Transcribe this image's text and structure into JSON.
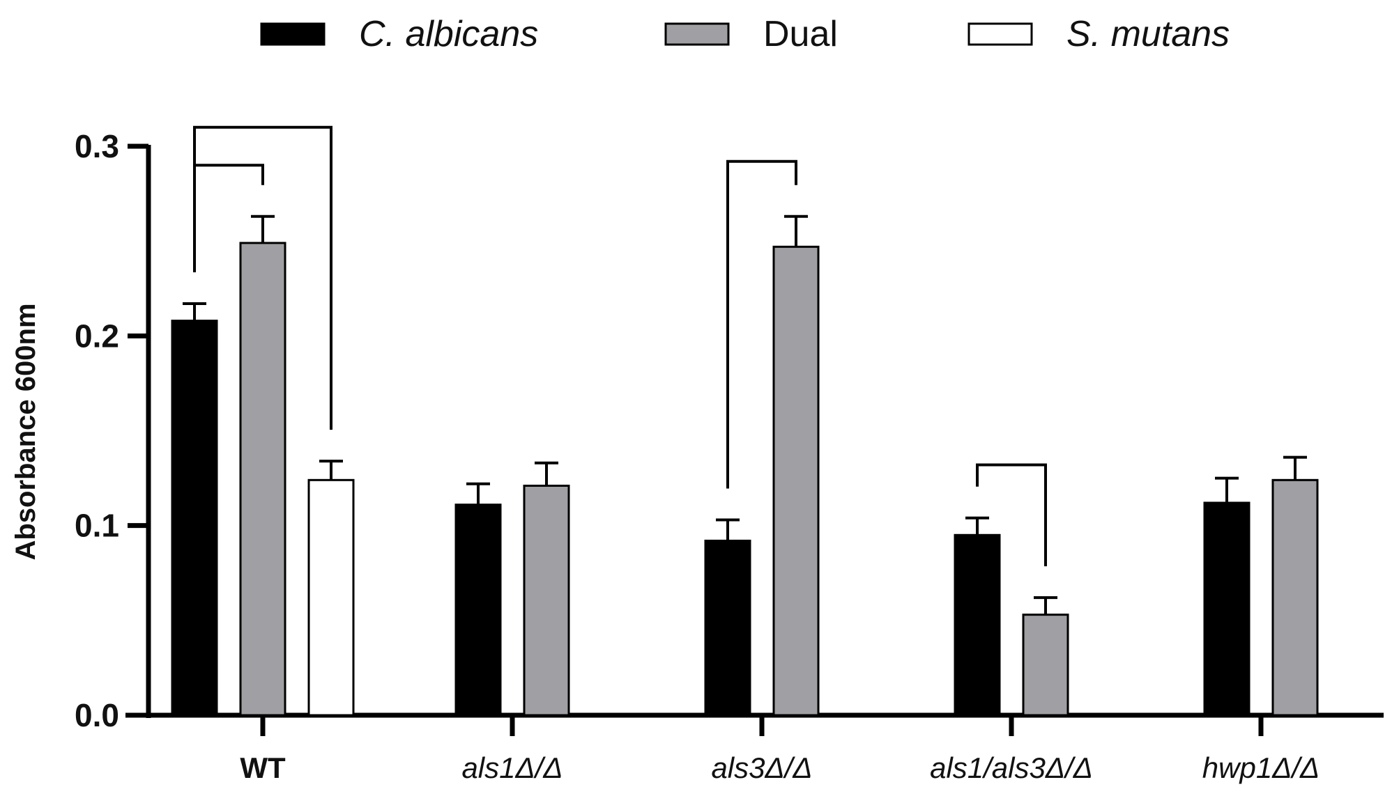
{
  "chart_data": {
    "type": "bar",
    "title": "",
    "xlabel": "",
    "ylabel": "Absorbance 600nm",
    "ylim": [
      0,
      0.3
    ],
    "yticks": [
      "0.0",
      "0.1",
      "0.2",
      "0.3"
    ],
    "yticks_values": [
      0,
      0.1,
      0.2,
      0.3
    ],
    "categories": [
      "WT",
      "als1Δ/Δ",
      "als3Δ/Δ",
      "als1/als3Δ/Δ",
      "hwp1Δ/Δ"
    ],
    "category_styles": [
      "bold",
      "italic",
      "italic",
      "italic",
      "italic"
    ],
    "legend": {
      "placement": "top",
      "entries": [
        {
          "name": "C. albicans",
          "italic": true,
          "color": "#000000"
        },
        {
          "name": "Dual",
          "italic": false,
          "color": "#a0a0a4"
        },
        {
          "name": "S. mutans",
          "italic": true,
          "color": "#ffffff"
        }
      ]
    },
    "series": [
      {
        "name": "C. albicans",
        "color": "#000000",
        "values": [
          0.208,
          0.111,
          0.092,
          0.095,
          0.112
        ],
        "errors": [
          0.009,
          0.011,
          0.011,
          0.009,
          0.013
        ]
      },
      {
        "name": "Dual",
        "color": "#a0a0a4",
        "values": [
          0.249,
          0.121,
          0.247,
          0.053,
          0.124
        ],
        "errors": [
          0.014,
          0.012,
          0.016,
          0.009,
          0.012
        ]
      },
      {
        "name": "S. mutans",
        "color": "#ffffff",
        "values": [
          0.124,
          null,
          null,
          null,
          null
        ],
        "errors": [
          0.01,
          null,
          null,
          null,
          null
        ]
      }
    ],
    "significance_brackets": [
      {
        "category": 0,
        "from_series": 0,
        "to_series": 1,
        "top": 0.29
      },
      {
        "category": 0,
        "from_series": 0,
        "to_series": 2,
        "top": 0.31
      },
      {
        "category": 2,
        "from_series": 0,
        "to_series": 1,
        "top": 0.292
      },
      {
        "category": 3,
        "from_series": 0,
        "to_series": 1,
        "top": 0.132
      }
    ]
  }
}
